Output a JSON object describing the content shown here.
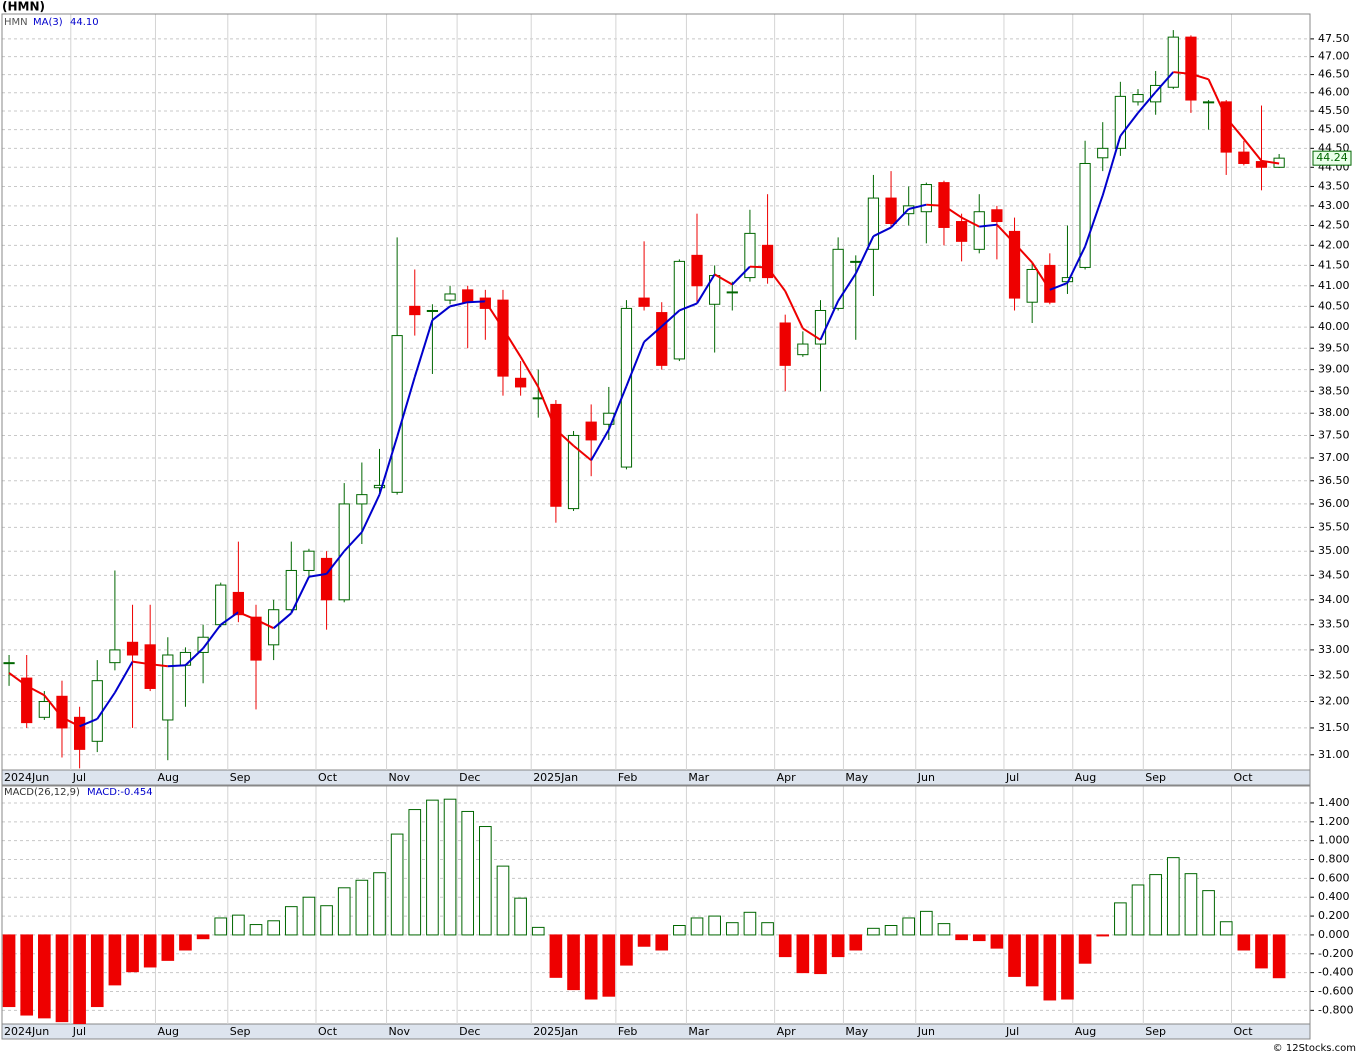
{
  "title": "(HMN)",
  "footer": "© 12Stocks.com",
  "chart_data": [
    {
      "type": "candlestick",
      "symbol": "HMN",
      "yscale": "log",
      "grid": true,
      "up_color": "#006600",
      "down_color": "#ee0000",
      "xlim": [
        -0.4,
        73.75
      ],
      "xticks": [
        {
          "value": -0.4,
          "label": "2024Jun"
        },
        {
          "value": 3.5,
          "label": "Jul"
        },
        {
          "value": 8.3,
          "label": "Aug"
        },
        {
          "value": 12.4,
          "label": "Sep"
        },
        {
          "value": 17.4,
          "label": "Oct"
        },
        {
          "value": 21.4,
          "label": "Nov"
        },
        {
          "value": 25.4,
          "label": "Dec"
        },
        {
          "value": 29.6,
          "label": "2025Jan"
        },
        {
          "value": 34.4,
          "label": "Feb"
        },
        {
          "value": 38.4,
          "label": "Mar"
        },
        {
          "value": 43.4,
          "label": "Apr"
        },
        {
          "value": 47.3,
          "label": "May"
        },
        {
          "value": 51.4,
          "label": "Jun"
        },
        {
          "value": 56.4,
          "label": "Jul"
        },
        {
          "value": 60.3,
          "label": "Aug"
        },
        {
          "value": 64.3,
          "label": "Sep"
        },
        {
          "value": 69.3,
          "label": "Oct"
        }
      ],
      "ylim": [
        30.72,
        48.21
      ],
      "yticks": [
        {
          "value": 31,
          "label": "31.00"
        },
        {
          "value": 31.5,
          "label": "31.50"
        },
        {
          "value": 32,
          "label": "32.00"
        },
        {
          "value": 32.5,
          "label": "32.50"
        },
        {
          "value": 33,
          "label": "33.00"
        },
        {
          "value": 33.5,
          "label": "33.50"
        },
        {
          "value": 34,
          "label": "34.00"
        },
        {
          "value": 34.5,
          "label": "34.50"
        },
        {
          "value": 35,
          "label": "35.00"
        },
        {
          "value": 35.5,
          "label": "35.50"
        },
        {
          "value": 36,
          "label": "36.00"
        },
        {
          "value": 36.5,
          "label": "36.50"
        },
        {
          "value": 37,
          "label": "37.00"
        },
        {
          "value": 37.5,
          "label": "37.50"
        },
        {
          "value": 38,
          "label": "38.00"
        },
        {
          "value": 38.5,
          "label": "38.50"
        },
        {
          "value": 39,
          "label": "39.00"
        },
        {
          "value": 39.5,
          "label": "39.50"
        },
        {
          "value": 40,
          "label": "40.00"
        },
        {
          "value": 40.5,
          "label": "40.50"
        },
        {
          "value": 41,
          "label": "41.00"
        },
        {
          "value": 41.5,
          "label": "41.50"
        },
        {
          "value": 42,
          "label": "42.00"
        },
        {
          "value": 42.5,
          "label": "42.50"
        },
        {
          "value": 43,
          "label": "43.00"
        },
        {
          "value": 43.5,
          "label": "43.50"
        },
        {
          "value": 44,
          "label": "44.00"
        },
        {
          "value": 44.5,
          "label": "44.50"
        },
        {
          "value": 45,
          "label": "45.00"
        },
        {
          "value": 45.5,
          "label": "45.50"
        },
        {
          "value": 46,
          "label": "46.00"
        },
        {
          "value": 46.5,
          "label": "46.50"
        },
        {
          "value": 47,
          "label": "47.00"
        },
        {
          "value": 47.5,
          "label": "47.50"
        }
      ],
      "open": [
        32.75,
        32.45,
        31.7,
        32.1,
        31.7,
        31.25,
        32.75,
        33.15,
        33.1,
        31.65,
        32.7,
        32.95,
        33.5,
        34.15,
        33.65,
        33.1,
        33.8,
        34.6,
        34.85,
        34.0,
        36.0,
        36.35,
        36.25,
        40.5,
        40.4,
        40.65,
        40.9,
        40.7,
        40.65,
        38.8,
        38.35,
        38.2,
        35.9,
        37.8,
        37.75,
        36.8,
        40.7,
        40.35,
        39.25,
        41.75,
        40.55,
        40.85,
        41.2,
        42.0,
        40.1,
        39.35,
        39.6,
        40.45,
        41.6,
        41.9,
        43.2,
        42.8,
        42.85,
        43.6,
        42.6,
        41.9,
        42.9,
        42.35,
        40.6,
        41.5,
        41.1,
        41.45,
        44.25,
        44.5,
        45.75,
        45.75,
        46.15,
        47.55,
        45.75,
        45.75,
        44.4,
        44.15,
        44.0
      ],
      "high": [
        32.9,
        32.9,
        32.2,
        32.4,
        31.9,
        32.8,
        34.6,
        33.9,
        33.9,
        33.25,
        33.05,
        33.5,
        34.35,
        35.2,
        33.9,
        34.0,
        35.2,
        35.05,
        35.0,
        36.45,
        36.9,
        37.2,
        42.2,
        41.4,
        40.55,
        41.0,
        41.0,
        40.9,
        40.9,
        39.2,
        39.0,
        38.3,
        37.6,
        38.2,
        38.6,
        40.65,
        42.1,
        40.6,
        41.65,
        42.8,
        41.5,
        41.1,
        42.9,
        43.3,
        40.3,
        39.9,
        40.65,
        42.2,
        41.75,
        43.8,
        43.9,
        43.5,
        43.6,
        43.65,
        42.8,
        43.3,
        43.0,
        42.7,
        41.55,
        41.8,
        42.5,
        44.7,
        45.2,
        46.3,
        46.1,
        46.6,
        47.75,
        47.6,
        45.8,
        45.8,
        44.7,
        45.65,
        44.35
      ],
      "low": [
        32.3,
        31.5,
        31.65,
        30.95,
        30.75,
        31.05,
        32.6,
        31.5,
        32.2,
        30.9,
        31.9,
        32.35,
        33.45,
        33.55,
        31.85,
        32.8,
        33.75,
        34.45,
        33.4,
        33.95,
        35.15,
        36.25,
        36.2,
        39.8,
        38.9,
        40.55,
        39.5,
        39.7,
        38.4,
        38.4,
        37.9,
        35.6,
        35.85,
        36.6,
        37.4,
        36.75,
        40.4,
        39.0,
        39.2,
        40.6,
        39.4,
        40.4,
        41.1,
        41.05,
        38.5,
        39.3,
        38.5,
        40.4,
        39.7,
        40.75,
        42.45,
        42.5,
        42.05,
        42.0,
        41.6,
        41.8,
        41.65,
        40.4,
        40.1,
        40.55,
        40.8,
        41.4,
        43.9,
        44.3,
        45.65,
        45.4,
        46.1,
        45.45,
        45.0,
        43.8,
        44.05,
        43.4,
        43.98
      ],
      "close": [
        32.75,
        31.6,
        32.0,
        31.5,
        31.1,
        32.4,
        33.0,
        32.9,
        32.25,
        32.9,
        32.95,
        33.25,
        34.3,
        33.7,
        32.8,
        33.8,
        34.6,
        35.0,
        34.0,
        36.0,
        36.2,
        36.4,
        39.8,
        40.3,
        40.4,
        40.8,
        40.6,
        40.45,
        38.85,
        38.6,
        38.35,
        35.95,
        37.5,
        37.4,
        38.0,
        40.45,
        40.5,
        39.1,
        41.6,
        41.0,
        41.25,
        40.85,
        42.3,
        41.2,
        39.1,
        39.6,
        40.4,
        41.9,
        41.6,
        43.2,
        42.55,
        43.0,
        43.55,
        42.45,
        42.1,
        42.85,
        42.6,
        40.7,
        41.4,
        40.6,
        41.2,
        44.1,
        44.5,
        45.9,
        45.95,
        46.2,
        47.55,
        45.8,
        45.75,
        44.4,
        44.1,
        44.0,
        44.24
      ],
      "ma": {
        "name": "MA(3)",
        "up_color": "#0000cc",
        "down_color": "#ee0000",
        "value_label": "44.10",
        "values": [
          32.55,
          32.3,
          32.12,
          31.7,
          31.53,
          31.67,
          32.17,
          32.77,
          32.72,
          32.68,
          32.7,
          33.03,
          33.5,
          33.75,
          33.6,
          33.43,
          33.73,
          34.47,
          34.53,
          35.0,
          35.4,
          36.2,
          37.47,
          38.83,
          40.17,
          40.5,
          40.6,
          40.62,
          39.97,
          39.3,
          38.6,
          37.63,
          37.27,
          36.95,
          37.63,
          38.62,
          39.65,
          40.02,
          40.4,
          40.57,
          41.28,
          41.03,
          41.47,
          41.45,
          40.87,
          39.97,
          39.7,
          40.63,
          41.3,
          42.23,
          42.45,
          42.92,
          43.03,
          43.0,
          42.7,
          42.47,
          42.52,
          42.05,
          41.57,
          40.9,
          41.07,
          41.97,
          43.27,
          44.83,
          45.45,
          46.02,
          46.57,
          46.52,
          46.37,
          45.32,
          44.75,
          44.17,
          44.1
        ]
      }
    },
    {
      "type": "histogram",
      "name": "MACD(26,12,9)",
      "value_label": "MACD:-0.454",
      "grid": true,
      "up_color": "#006600",
      "down_color": "#ee0000",
      "xlim": [
        -0.4,
        73.75
      ],
      "xticks": [
        {
          "value": -0.4,
          "label": "2024Jun"
        },
        {
          "value": 3.5,
          "label": "Jul"
        },
        {
          "value": 8.3,
          "label": "Aug"
        },
        {
          "value": 12.4,
          "label": "Sep"
        },
        {
          "value": 17.4,
          "label": "Oct"
        },
        {
          "value": 21.4,
          "label": "Nov"
        },
        {
          "value": 25.4,
          "label": "Dec"
        },
        {
          "value": 29.6,
          "label": "2025Jan"
        },
        {
          "value": 34.4,
          "label": "Feb"
        },
        {
          "value": 38.4,
          "label": "Mar"
        },
        {
          "value": 43.4,
          "label": "Apr"
        },
        {
          "value": 47.3,
          "label": "May"
        },
        {
          "value": 51.4,
          "label": "Jun"
        },
        {
          "value": 56.4,
          "label": "Jul"
        },
        {
          "value": 60.3,
          "label": "Aug"
        },
        {
          "value": 64.3,
          "label": "Sep"
        },
        {
          "value": 69.3,
          "label": "Oct"
        }
      ],
      "ylim": [
        -0.945,
        1.58
      ],
      "yticks": [
        {
          "value": -0.8,
          "label": "-0.800"
        },
        {
          "value": -0.6,
          "label": "-0.600"
        },
        {
          "value": -0.4,
          "label": "-0.400"
        },
        {
          "value": -0.2,
          "label": "-0.200"
        },
        {
          "value": 0,
          "label": "0.000"
        },
        {
          "value": 0.2,
          "label": "0.200"
        },
        {
          "value": 0.4,
          "label": "0.400"
        },
        {
          "value": 0.6,
          "label": "0.600"
        },
        {
          "value": 0.8,
          "label": "0.800"
        },
        {
          "value": 1.0,
          "label": "1.000"
        },
        {
          "value": 1.2,
          "label": "1.200"
        },
        {
          "value": 1.4,
          "label": "1.400"
        }
      ],
      "values": [
        -0.76,
        -0.85,
        -0.88,
        -0.92,
        -0.94,
        -0.76,
        -0.53,
        -0.39,
        -0.34,
        -0.27,
        -0.16,
        -0.04,
        0.18,
        0.21,
        0.11,
        0.15,
        0.3,
        0.4,
        0.31,
        0.5,
        0.58,
        0.66,
        1.07,
        1.33,
        1.43,
        1.44,
        1.31,
        1.15,
        0.73,
        0.39,
        0.08,
        -0.45,
        -0.58,
        -0.68,
        -0.65,
        -0.32,
        -0.12,
        -0.16,
        0.1,
        0.18,
        0.2,
        0.13,
        0.24,
        0.13,
        -0.23,
        -0.4,
        -0.41,
        -0.23,
        -0.16,
        0.07,
        0.1,
        0.18,
        0.25,
        0.12,
        -0.05,
        -0.06,
        -0.14,
        -0.44,
        -0.54,
        -0.69,
        -0.68,
        -0.3,
        -0.01,
        0.34,
        0.53,
        0.64,
        0.82,
        0.65,
        0.47,
        0.14,
        -0.16,
        -0.35,
        -0.454
      ]
    }
  ]
}
